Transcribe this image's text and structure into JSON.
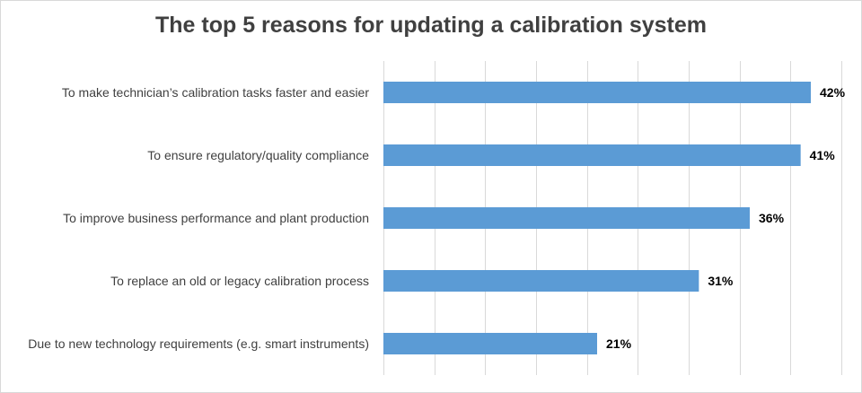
{
  "chart_data": {
    "type": "bar",
    "orientation": "horizontal",
    "title": "The top 5 reasons for updating a calibration system",
    "xlabel": "",
    "ylabel": "",
    "categories": [
      "To make technician’s calibration tasks faster and easier",
      "To ensure regulatory/quality compliance",
      "To improve business performance and plant production",
      "To replace an old or legacy calibration process",
      "Due to new technology requirements (e.g. smart instruments)"
    ],
    "values": [
      42,
      41,
      36,
      31,
      21
    ],
    "data_labels": [
      "42%",
      "41%",
      "36%",
      "31%",
      "21%"
    ],
    "unit": "%",
    "xlim": [
      0,
      45
    ],
    "gridlines": "vertical",
    "legend": "none",
    "colors": {
      "bar": "#5b9bd5",
      "grid": "#d9d9d9",
      "text": "#404040",
      "label": "#000000"
    }
  }
}
